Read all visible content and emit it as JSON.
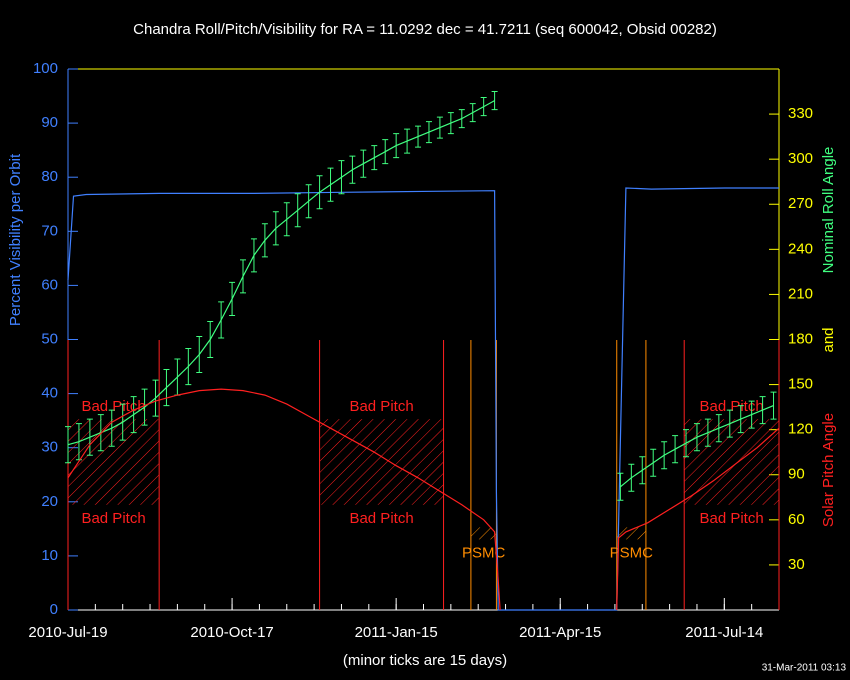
{
  "chart_data": {
    "type": "line",
    "title": "Chandra Roll/Pitch/Visibility for RA = 11.0292 dec = 41.7211 (seq 600042, Obsid 00282)",
    "ylabel": "Percent Visibility per Orbit",
    "y2labels": [
      {
        "text": "Nominal Roll Angle",
        "color": "#40ff80"
      },
      {
        "text": "and",
        "color": "#ffff00"
      },
      {
        "text": "Solar Pitch Angle",
        "color": "#ff2020"
      }
    ],
    "xlabel": "(minor ticks are 15 days)",
    "timestamp": "31-Mar-2011 03:13",
    "xlim": [
      0,
      390
    ],
    "xticks": [
      {
        "value": 0,
        "label": "2010-Jul-19"
      },
      {
        "value": 90,
        "label": "2010-Oct-17"
      },
      {
        "value": 180,
        "label": "2011-Jan-15"
      },
      {
        "value": 270,
        "label": "2011-Apr-15"
      },
      {
        "value": 360,
        "label": "2011-Jul-14"
      }
    ],
    "xminor": 15,
    "ylim": [
      0,
      100
    ],
    "yticks": [
      0,
      10,
      20,
      30,
      40,
      50,
      60,
      70,
      80,
      90,
      100
    ],
    "y2lim": [
      0,
      360
    ],
    "y2ticks": [
      30,
      60,
      90,
      120,
      150,
      180,
      210,
      240,
      270,
      300,
      330
    ],
    "series": [
      {
        "color": "#4080ff",
        "axis": "y",
        "x": [
          0,
          3,
          10,
          50,
          100,
          150,
          200,
          234,
          235,
          236,
          237,
          270,
          301,
          306,
          320,
          360,
          390
        ],
        "values": [
          61,
          76.5,
          76.8,
          77,
          77,
          77.2,
          77.4,
          77.5,
          22,
          0,
          0,
          0,
          0,
          78,
          77.8,
          78,
          78
        ]
      },
      {
        "color": "#40ff80",
        "axis": "y2",
        "x": [
          0,
          6,
          12,
          18,
          24,
          30,
          36,
          42,
          48,
          54,
          60,
          66,
          72,
          78,
          84,
          90,
          96,
          102,
          108,
          114,
          120,
          126,
          132,
          138,
          144,
          150,
          156,
          162,
          168,
          174,
          180,
          186,
          192,
          198,
          204,
          210,
          216,
          222,
          228,
          234,
          270,
          303,
          309,
          315,
          321,
          327,
          333,
          339,
          345,
          351,
          357,
          363,
          369,
          375,
          381,
          387
        ],
        "values": [
          110,
          112,
          115,
          118,
          121,
          125,
          130,
          135,
          141,
          148,
          155,
          162,
          170,
          180,
          193,
          207,
          222,
          236,
          246,
          254,
          260,
          266,
          272,
          278,
          283,
          288,
          293,
          297,
          301,
          305,
          309,
          312,
          315,
          318,
          321,
          324,
          327,
          331,
          335,
          339,
          null,
          82,
          88,
          93,
          98,
          103,
          107,
          111,
          115,
          118,
          121,
          124,
          127,
          130,
          133,
          136
        ],
        "errors": [
          12,
          12,
          12,
          12,
          12,
          12,
          12,
          12,
          12,
          12,
          12,
          12,
          12,
          12,
          12,
          11,
          11,
          11,
          11,
          11,
          11,
          11,
          11,
          11,
          11,
          11,
          9,
          9,
          8,
          8,
          8,
          8,
          7,
          7,
          7,
          7,
          6,
          6,
          6,
          6,
          null,
          9,
          9,
          9,
          9,
          9,
          9,
          9,
          9,
          9,
          9,
          9,
          9,
          9,
          9,
          9
        ]
      },
      {
        "color": "#ff2020",
        "axis": "y2",
        "x": [
          0,
          12,
          24,
          36,
          48,
          60,
          72,
          84,
          96,
          108,
          120,
          132,
          144,
          156,
          168,
          180,
          192,
          204,
          216,
          228,
          234,
          236,
          237,
          270,
          301,
          302,
          306,
          318,
          330,
          342,
          354,
          366,
          378,
          390
        ],
        "values": [
          88,
          110,
          125,
          133,
          139,
          143,
          146,
          147,
          146,
          143,
          137,
          129,
          121,
          113,
          105,
          96,
          88,
          79,
          70,
          60,
          52,
          20,
          0,
          null,
          0,
          48,
          52,
          58,
          67,
          76,
          86,
          97,
          108,
          121
        ]
      }
    ],
    "regions": [
      {
        "label": "Bad Pitch",
        "x": [
          0,
          50
        ],
        "band": [
          70,
          127
        ],
        "color": "#ff2020",
        "labels_at": [
          "above",
          "below"
        ]
      },
      {
        "label": "Bad Pitch",
        "x": [
          138,
          206
        ],
        "band": [
          70,
          127
        ],
        "color": "#ff2020",
        "labels_at": [
          "above",
          "below"
        ]
      },
      {
        "label": "Bad Pitch",
        "x": [
          338,
          390
        ],
        "band": [
          70,
          127
        ],
        "color": "#ff2020",
        "labels_at": [
          "above",
          "below"
        ]
      },
      {
        "label": "PSMC",
        "x": [
          221,
          235
        ],
        "band": [
          47,
          55
        ],
        "color": "#ff8c00",
        "labels_at": [
          "below"
        ]
      },
      {
        "label": "PSMC",
        "x": [
          301,
          317
        ],
        "band": [
          47,
          55
        ],
        "color": "#ff8c00",
        "labels_at": [
          "below"
        ]
      }
    ]
  }
}
